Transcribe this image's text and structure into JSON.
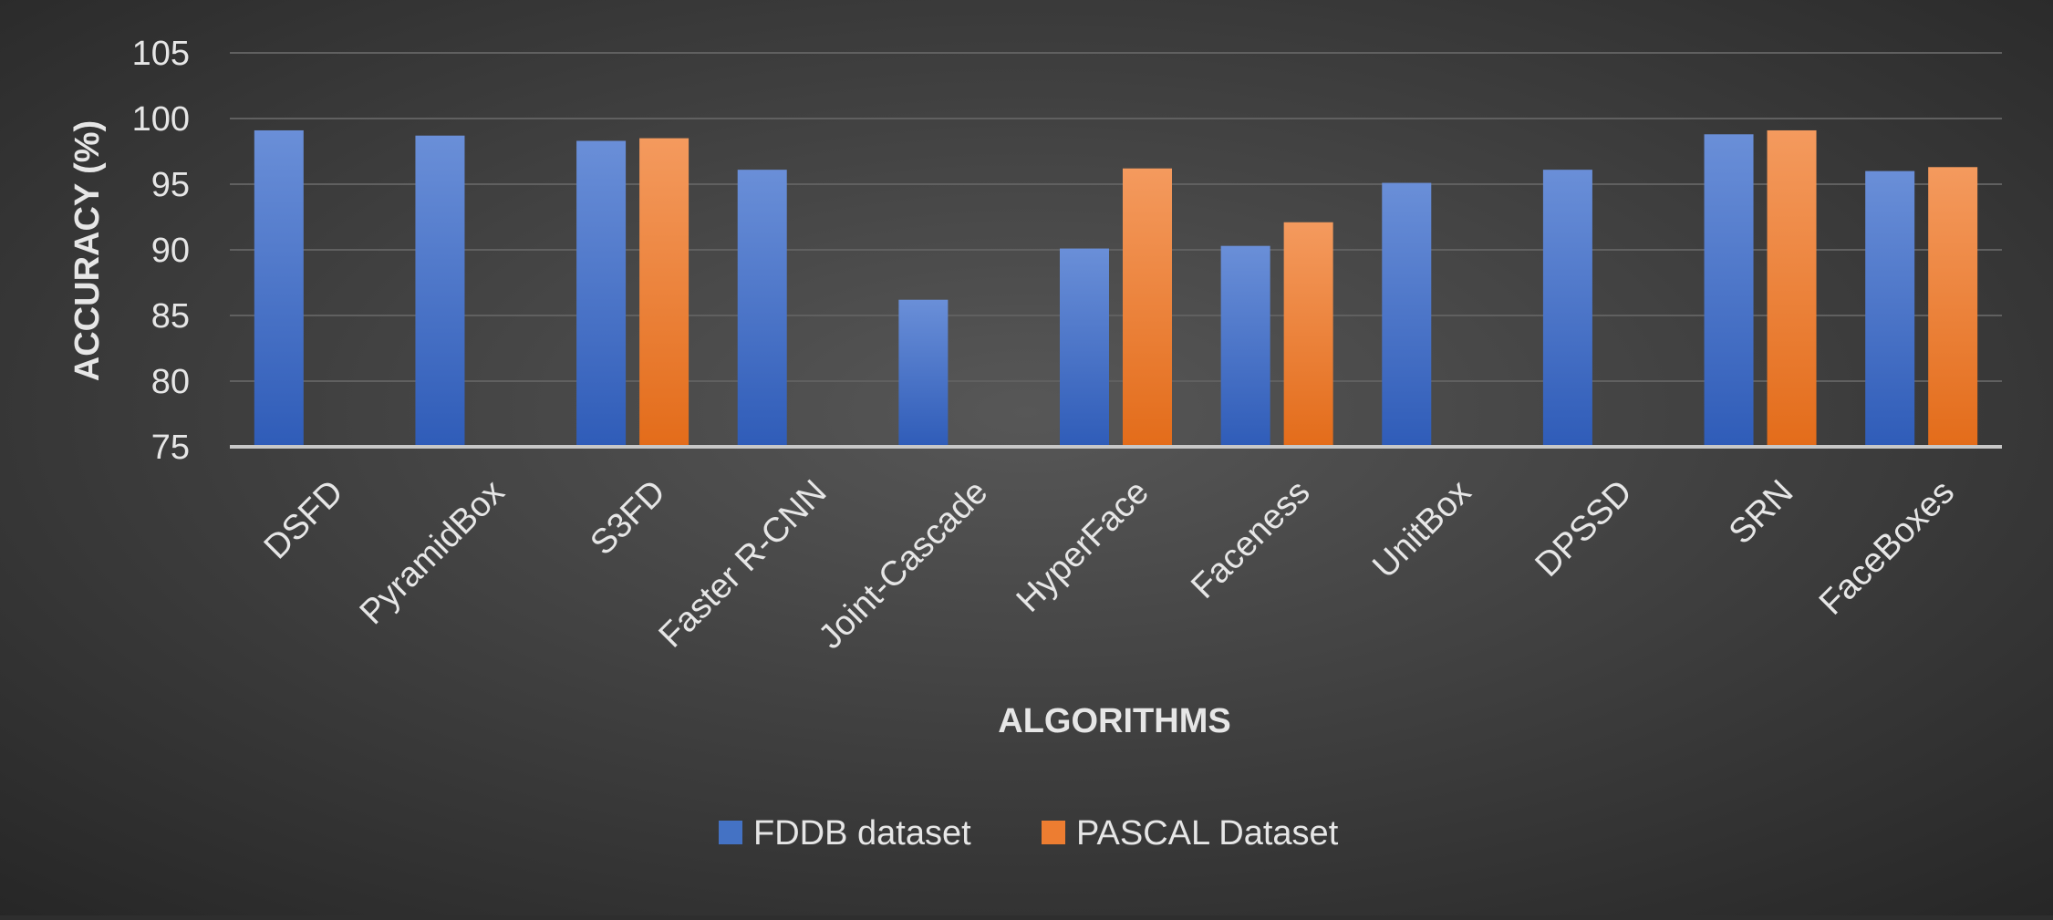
{
  "chart_data": {
    "type": "bar",
    "categories": [
      "DSFD",
      "PyramidBox",
      "S3FD",
      "Faster R-CNN",
      "Joint-Cascade",
      "HyperFace",
      "Faceness",
      "UnitBox",
      "DPSSD",
      "SRN",
      "FaceBoxes"
    ],
    "series": [
      {
        "name": "FDDB dataset",
        "values": [
          99.1,
          98.7,
          98.3,
          96.1,
          86.2,
          90.1,
          90.3,
          95.1,
          96.1,
          98.8,
          96.0
        ]
      },
      {
        "name": "PASCAL Dataset",
        "values": [
          null,
          null,
          98.5,
          null,
          null,
          96.2,
          92.1,
          null,
          null,
          99.1,
          96.3
        ]
      }
    ],
    "title": "",
    "xlabel": "ALGORITHMS",
    "ylabel": "ACCURACY (%)",
    "ylim": [
      75,
      105
    ],
    "yticks": [
      75,
      80,
      85,
      90,
      95,
      100,
      105
    ],
    "grid": true,
    "legend_position": "bottom",
    "colors": {
      "FDDB dataset": "#4472c4",
      "PASCAL Dataset": "#ed7d31",
      "background": "#3a3a3a",
      "gridline": "#5a5a5a",
      "text": "#e6e6e6"
    }
  }
}
